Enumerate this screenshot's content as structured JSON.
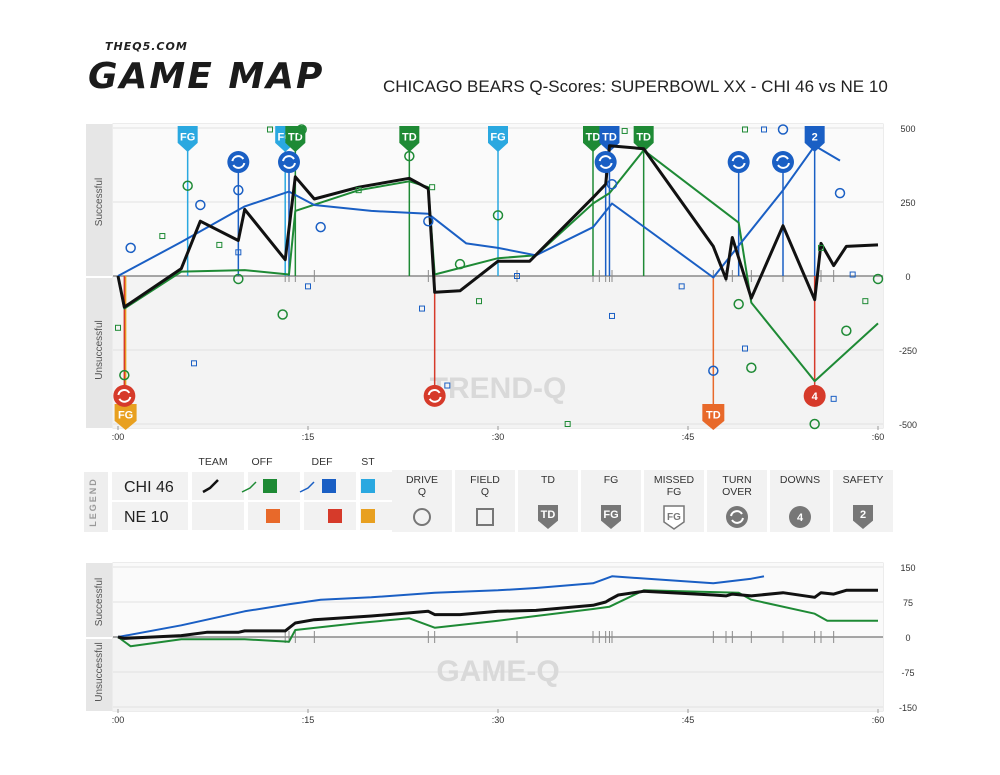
{
  "brand": {
    "site": "THEQ5.COM",
    "title": "GAME MAP"
  },
  "title": "CHICAGO BEARS Q-Scores: SUPERBOWL XX - CHI 46 vs NE 10",
  "colors": {
    "team": "#111111",
    "off": "#1e8a35",
    "def": "#1a5fc4",
    "st": "#2aa8e0",
    "opp_off": "#e8692a",
    "opp_def": "#d63a2a",
    "opp_st": "#e8a020",
    "gray": "#777777"
  },
  "legend": {
    "label": "LEGEND",
    "col_heads": [
      "TEAM",
      "OFF",
      "DEF",
      "ST"
    ],
    "teams": [
      "CHI 46",
      "NE 10"
    ],
    "icons": [
      {
        "label": [
          "DRIVE",
          "Q"
        ],
        "icon": "circle-icon"
      },
      {
        "label": [
          "FIELD",
          "Q"
        ],
        "icon": "square-icon"
      },
      {
        "label": [
          "TD"
        ],
        "icon": "td-shield-icon",
        "glyph": "TD"
      },
      {
        "label": [
          "FG"
        ],
        "icon": "fg-shield-icon",
        "glyph": "FG"
      },
      {
        "label": [
          "MISSED",
          "FG"
        ],
        "icon": "missed-fg-shield-icon",
        "glyph": "FG"
      },
      {
        "label": [
          "TURN",
          "OVER"
        ],
        "icon": "turnover-icon"
      },
      {
        "label": [
          "DOWNS"
        ],
        "icon": "downs-icon",
        "glyph": "4"
      },
      {
        "label": [
          "SAFETY"
        ],
        "icon": "safety-shield-icon",
        "glyph": "2"
      }
    ]
  },
  "chart_data": [
    {
      "type": "line",
      "name": "TREND-Q",
      "watermark": "TREND-Q",
      "xlabel": "",
      "ylabel_top": "Successful",
      "ylabel_bottom": "Unsuccessful",
      "xlim": [
        0,
        60
      ],
      "ylim": [
        -500,
        500
      ],
      "x_ticks": [
        ":00",
        ":15",
        ":30",
        ":45",
        ":60"
      ],
      "y_ticks": [
        500,
        250,
        0,
        -250,
        -500
      ],
      "grid": "horizontal",
      "series": [
        {
          "role": "team",
          "points": [
            [
              0,
              0
            ],
            [
              0.5,
              -105
            ],
            [
              5,
              25
            ],
            [
              6.5,
              185
            ],
            [
              9.5,
              120
            ],
            [
              10,
              225
            ],
            [
              13.2,
              55
            ],
            [
              14,
              335
            ],
            [
              15.5,
              260
            ],
            [
              19,
              300
            ],
            [
              23,
              330
            ],
            [
              24.5,
              295
            ],
            [
              25,
              -55
            ],
            [
              27,
              -50
            ],
            [
              30,
              50
            ],
            [
              32.5,
              50
            ],
            [
              37.5,
              265
            ],
            [
              38.5,
              310
            ],
            [
              38.8,
              440
            ],
            [
              41.5,
              430
            ],
            [
              47,
              100
            ],
            [
              48,
              -10
            ],
            [
              48.5,
              130
            ],
            [
              50,
              -75
            ],
            [
              52.5,
              170
            ],
            [
              55,
              -80
            ],
            [
              55.5,
              110
            ],
            [
              56.5,
              35
            ],
            [
              57.5,
              100
            ],
            [
              60,
              105
            ]
          ]
        },
        {
          "role": "off",
          "points": [
            [
              0,
              0
            ],
            [
              0.5,
              -110
            ],
            [
              5,
              15
            ],
            [
              10,
              20
            ],
            [
              13.5,
              5
            ],
            [
              14,
              220
            ],
            [
              19,
              290
            ],
            [
              23,
              320
            ],
            [
              24.5,
              300
            ],
            [
              25,
              5
            ],
            [
              30,
              60
            ],
            [
              33,
              70
            ],
            [
              37.5,
              245
            ],
            [
              38.8,
              280
            ],
            [
              41.5,
              425
            ],
            [
              49,
              180
            ],
            [
              50,
              -90
            ],
            [
              55,
              -355
            ],
            [
              60,
              -160
            ]
          ]
        },
        {
          "role": "def",
          "points": [
            [
              0,
              0
            ],
            [
              5,
              115
            ],
            [
              10,
              235
            ],
            [
              13.5,
              285
            ],
            [
              15.5,
              240
            ],
            [
              20,
              220
            ],
            [
              24.5,
              210
            ],
            [
              27.5,
              110
            ],
            [
              30,
              95
            ],
            [
              33,
              70
            ],
            [
              37.5,
              165
            ],
            [
              39,
              245
            ],
            [
              47,
              -5
            ],
            [
              52.5,
              290
            ],
            [
              55,
              440
            ],
            [
              57,
              390
            ]
          ]
        }
      ],
      "drive_q": [
        {
          "x": 1,
          "y": 95,
          "team": "def"
        },
        {
          "x": 5.5,
          "y": 305,
          "team": "off"
        },
        {
          "x": 6.5,
          "y": 240,
          "team": "def"
        },
        {
          "x": 9.5,
          "y": 290,
          "team": "def"
        },
        {
          "x": 9.5,
          "y": -10,
          "team": "off"
        },
        {
          "x": 13,
          "y": -130,
          "team": "off"
        },
        {
          "x": 16,
          "y": 165,
          "team": "def"
        },
        {
          "x": 23,
          "y": 405,
          "team": "off"
        },
        {
          "x": 24.5,
          "y": 185,
          "team": "def"
        },
        {
          "x": 27,
          "y": 40,
          "team": "off"
        },
        {
          "x": 30,
          "y": 205,
          "team": "off"
        },
        {
          "x": 39,
          "y": 310,
          "team": "def"
        },
        {
          "x": 47,
          "y": -320,
          "team": "def"
        },
        {
          "x": 49,
          "y": -95,
          "team": "off"
        },
        {
          "x": 50,
          "y": -310,
          "team": "off"
        },
        {
          "x": 57,
          "y": 280,
          "team": "def"
        },
        {
          "x": 57.5,
          "y": -185,
          "team": "off"
        },
        {
          "x": 60,
          "y": -10,
          "team": "off"
        },
        {
          "x": 55,
          "y": -500,
          "team": "off"
        },
        {
          "x": 52.5,
          "y": 495,
          "team": "def"
        },
        {
          "x": 14.5,
          "y": 495,
          "team": "off"
        },
        {
          "x": 0.5,
          "y": -335,
          "team": "off"
        }
      ],
      "field_q": [
        {
          "x": 0,
          "y": -175,
          "team": "off"
        },
        {
          "x": 3.5,
          "y": 135,
          "team": "off"
        },
        {
          "x": 6,
          "y": -295,
          "team": "def"
        },
        {
          "x": 8,
          "y": 105,
          "team": "off"
        },
        {
          "x": 9.5,
          "y": 80,
          "team": "def"
        },
        {
          "x": 12,
          "y": 495,
          "team": "off"
        },
        {
          "x": 15,
          "y": -35,
          "team": "def"
        },
        {
          "x": 19,
          "y": 290,
          "team": "off"
        },
        {
          "x": 24,
          "y": -110,
          "team": "def"
        },
        {
          "x": 24.8,
          "y": 300,
          "team": "off"
        },
        {
          "x": 26,
          "y": -370,
          "team": "def"
        },
        {
          "x": 28.5,
          "y": -85,
          "team": "off"
        },
        {
          "x": 31.5,
          "y": 0,
          "team": "def"
        },
        {
          "x": 35.5,
          "y": -500,
          "team": "off"
        },
        {
          "x": 39,
          "y": -135,
          "team": "def"
        },
        {
          "x": 40,
          "y": 490,
          "team": "off"
        },
        {
          "x": 44.5,
          "y": -35,
          "team": "def"
        },
        {
          "x": 49.5,
          "y": -245,
          "team": "def"
        },
        {
          "x": 49.5,
          "y": 495,
          "team": "off"
        },
        {
          "x": 51,
          "y": 495,
          "team": "def"
        },
        {
          "x": 55.5,
          "y": 95,
          "team": "off"
        },
        {
          "x": 56.5,
          "y": -415,
          "team": "def"
        },
        {
          "x": 59,
          "y": -85,
          "team": "off"
        },
        {
          "x": 58,
          "y": 5,
          "team": "def"
        }
      ],
      "events": [
        {
          "x": 5.5,
          "kind": "FG",
          "side": "top",
          "team": "st"
        },
        {
          "x": 13.2,
          "kind": "FG",
          "side": "top",
          "team": "st"
        },
        {
          "x": 14,
          "kind": "TD",
          "side": "top",
          "team": "off"
        },
        {
          "x": 23,
          "kind": "TD",
          "side": "top",
          "team": "off"
        },
        {
          "x": 30,
          "kind": "FG",
          "side": "top",
          "team": "st"
        },
        {
          "x": 37.5,
          "kind": "TD",
          "side": "top",
          "team": "off"
        },
        {
          "x": 38.8,
          "kind": "TD",
          "side": "top",
          "team": "def"
        },
        {
          "x": 41.5,
          "kind": "TD",
          "side": "top",
          "team": "off"
        },
        {
          "x": 55,
          "kind": "SAFETY",
          "side": "top",
          "team": "def",
          "glyph": "2"
        },
        {
          "x": 0.6,
          "kind": "FG",
          "side": "bottom",
          "team": "opp_st"
        },
        {
          "x": 47,
          "kind": "TD",
          "side": "bottom",
          "team": "opp_off"
        }
      ],
      "turnovers": [
        {
          "x": 9.5,
          "y": 385,
          "team": "def"
        },
        {
          "x": 13.5,
          "y": 385,
          "team": "def"
        },
        {
          "x": 38.5,
          "y": 385,
          "team": "def"
        },
        {
          "x": 49,
          "y": 385,
          "team": "def"
        },
        {
          "x": 52.5,
          "y": 385,
          "team": "def"
        },
        {
          "x": 0.5,
          "y": -405,
          "team": "opp_def"
        },
        {
          "x": 25,
          "y": -405,
          "team": "opp_def"
        }
      ],
      "downs": [
        {
          "x": 55,
          "y": -405,
          "team": "opp_def",
          "glyph": "4"
        }
      ],
      "minor_ticks": [
        13.2,
        13.5,
        14,
        15.5,
        24.5,
        25,
        31.5,
        37.5,
        38,
        38.5,
        38.8,
        39,
        47,
        48,
        48.5,
        50,
        52.5,
        55,
        55.5,
        56.5
      ]
    },
    {
      "type": "line",
      "name": "GAME-Q",
      "watermark": "GAME-Q",
      "xlabel": "",
      "ylabel_top": "Successful",
      "ylabel_bottom": "Unsuccessful",
      "xlim": [
        0,
        60
      ],
      "ylim": [
        -150,
        150
      ],
      "x_ticks": [
        ":00",
        ":15",
        ":30",
        ":45",
        ":60"
      ],
      "y_ticks": [
        150,
        75,
        0,
        -75,
        -150
      ],
      "grid": "horizontal",
      "series": [
        {
          "role": "team",
          "points": [
            [
              0,
              0
            ],
            [
              0.5,
              -3
            ],
            [
              5,
              3
            ],
            [
              7,
              10
            ],
            [
              9.5,
              10
            ],
            [
              10,
              13
            ],
            [
              13.2,
              13
            ],
            [
              14,
              30
            ],
            [
              15.5,
              37
            ],
            [
              20,
              45
            ],
            [
              24.5,
              55
            ],
            [
              25,
              48
            ],
            [
              27,
              48
            ],
            [
              30,
              55
            ],
            [
              33,
              57
            ],
            [
              37.5,
              68
            ],
            [
              38.5,
              75
            ],
            [
              38.8,
              80
            ],
            [
              39.5,
              90
            ],
            [
              41.5,
              98
            ],
            [
              47,
              90
            ],
            [
              48,
              88
            ],
            [
              48.5,
              92
            ],
            [
              50,
              88
            ],
            [
              52.5,
              95
            ],
            [
              55,
              85
            ],
            [
              55.5,
              95
            ],
            [
              56.5,
              92
            ],
            [
              57.5,
              100
            ],
            [
              60,
              100
            ]
          ]
        },
        {
          "role": "off",
          "points": [
            [
              0,
              0
            ],
            [
              1,
              -20
            ],
            [
              5,
              -5
            ],
            [
              10,
              -5
            ],
            [
              13.5,
              -10
            ],
            [
              14,
              15
            ],
            [
              19,
              30
            ],
            [
              23,
              40
            ],
            [
              25,
              20
            ],
            [
              30,
              35
            ],
            [
              33,
              45
            ],
            [
              37.5,
              60
            ],
            [
              38.8,
              65
            ],
            [
              41.5,
              100
            ],
            [
              49,
              95
            ],
            [
              50,
              80
            ],
            [
              55,
              50
            ],
            [
              56,
              35
            ],
            [
              60,
              35
            ]
          ]
        },
        {
          "role": "def",
          "points": [
            [
              0,
              0
            ],
            [
              5,
              25
            ],
            [
              10,
              55
            ],
            [
              13.5,
              70
            ],
            [
              16,
              80
            ],
            [
              20,
              85
            ],
            [
              25,
              95
            ],
            [
              30,
              100
            ],
            [
              33,
              105
            ],
            [
              37.5,
              115
            ],
            [
              39,
              130
            ],
            [
              47,
              115
            ],
            [
              50,
              125
            ],
            [
              51,
              130
            ]
          ]
        }
      ],
      "minor_ticks": [
        13.2,
        13.5,
        14,
        15.5,
        24.5,
        25,
        31.5,
        37.5,
        38,
        38.5,
        38.8,
        39,
        47,
        48,
        48.5,
        50,
        52.5,
        55,
        55.5,
        56.5
      ]
    }
  ]
}
